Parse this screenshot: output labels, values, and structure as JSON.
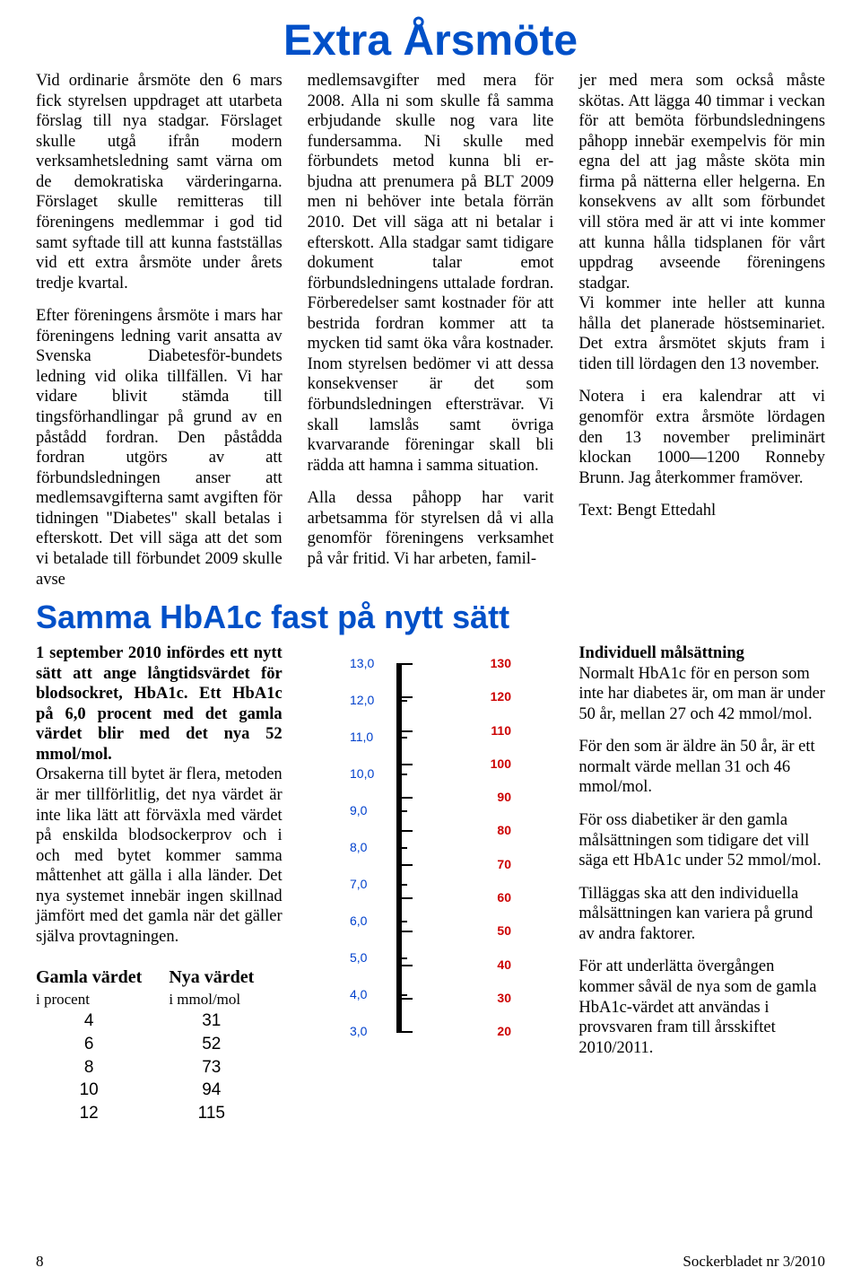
{
  "title1": "Extra Årsmöte",
  "col1": {
    "p1": "Vid ordinarie årsmöte den 6 mars fick styrelsen uppdraget att utarbeta förslag till nya stadgar. Förslaget skulle utgå ifrån modern verksamhetsledning samt värna om de demokratiska värderingarna. Förslaget skulle remitteras till föreningens medlemmar i god tid samt syftade till att kunna fastställas vid ett extra årsmöte under årets tredje kvartal.",
    "p2": "Efter föreningens årsmöte i mars har föreningens ledning varit ansatta av Svenska Diabetesför-bundets ledning vid olika tillfällen. Vi har vidare blivit stämda till tingsförhandlingar på grund av en påstådd fordran. Den påstådda fordran utgörs av att förbundsledningen anser att medlemsavgifterna samt avgiften för tidningen \"Diabetes\" skall betalas i efterskott. Det vill säga att det som vi betalade till förbundet 2009 skulle avse"
  },
  "col2": {
    "p1": "medlemsavgifter med mera för 2008. Alla ni som skulle få samma erbjudande skulle nog vara lite fundersamma. Ni skulle med förbundets metod kunna bli er-bjudna att prenumera på BLT 2009 men ni behöver inte betala förrän 2010. Det vill säga att ni betalar i efterskott. Alla stadgar samt tidigare dokument talar emot förbundsledningens uttalade fordran. Förberedelser samt kostnader för att bestrida fordran kommer att ta mycken tid samt öka våra kostnader. Inom styrelsen bedömer vi att dessa konsekvenser är det som förbundsledningen eftersträvar. Vi skall lamslås samt övriga kvarvarande föreningar skall bli rädda att hamna i samma situation.",
    "p2": "Alla dessa påhopp har varit arbetsamma för styrelsen då vi alla genomför föreningens verksamhet på vår fritid. Vi har arbeten, famil-"
  },
  "col3": {
    "p1": "jer med mera som också måste skötas. Att lägga 40 timmar i veckan för att bemöta förbundsledningens påhopp innebär exempelvis för min egna del att jag måste sköta min firma på nätterna eller helgerna. En konsekvens av allt som förbundet vill störa med är att vi inte kommer att kunna hålla tidsplanen för vårt uppdrag avseende föreningens stadgar.",
    "p1b": "Vi kommer inte heller att kunna hålla det planerade höstseminariet. Det extra årsmötet skjuts fram i tiden till lördagen den 13 november.",
    "p2": "Notera i era kalendrar att vi genomför extra årsmöte lördagen den 13 november preliminärt klockan 1000—1200 Ronneby Brunn. Jag återkommer framöver.",
    "p3": "Text: Bengt Ettedahl"
  },
  "title2": "Samma HbA1c fast på nytt sätt",
  "lowerL": {
    "intro": "1 september 2010 infördes ett nytt sätt att ange långtidsvärdet för blodsockret, HbA1c. Ett HbA1c på 6,0 procent med det gamla värdet blir med det nya 52 mmol/mol.",
    "rest": "Orsakerna till bytet är flera, metoden är mer tillförlitlig, det nya värdet är inte lika lätt att förväxla med värdet på enskilda blodsockerprov och i och med bytet kommer samma måttenhet att gälla i alla länder. Det nya systemet innebär ingen skillnad jämfört med det gamla när det gäller själva provtagningen."
  },
  "table": {
    "h1a": "Gamla värdet",
    "h1b": "i procent",
    "h2a": "Nya värdet",
    "h2b": "i mmol/mol",
    "c1": [
      "4",
      "6",
      "8",
      "10",
      "12"
    ],
    "c2": [
      "31",
      "52",
      "73",
      "94",
      "115"
    ]
  },
  "scale": {
    "left_labels": [
      "13,0",
      "12,0",
      "11,0",
      "10,0",
      "9,0",
      "8,0",
      "7,0",
      "6,0",
      "5,0",
      "4,0",
      "3,0"
    ],
    "right_labels": [
      "130",
      "120",
      "110",
      "100",
      "90",
      "80",
      "70",
      "60",
      "50",
      "40",
      "30",
      "20"
    ]
  },
  "lowerR": {
    "h1": "Individuell målsättning",
    "p1": "Normalt HbA1c för en person som inte har diabetes är, om man är under 50 år, mellan 27 och 42 mmol/mol.",
    "p2": "För den som är äldre än 50 år, är ett normalt värde mellan 31 och 46 mmol/mol.",
    "p3": "För oss diabetiker är den gamla målsättningen som tidigare det vill säga ett HbA1c under 52 mmol/mol.",
    "p4": "Tilläggas ska att den individuella målsättningen kan variera på grund av andra faktorer.",
    "p5": "För att underlätta övergången kommer såväl de nya som de gamla HbA1c-värdet att användas i provsvaren fram till årsskiftet 2010/2011."
  },
  "footer": {
    "page": "8",
    "issue": "Sockerbladet nr 3/2010"
  }
}
